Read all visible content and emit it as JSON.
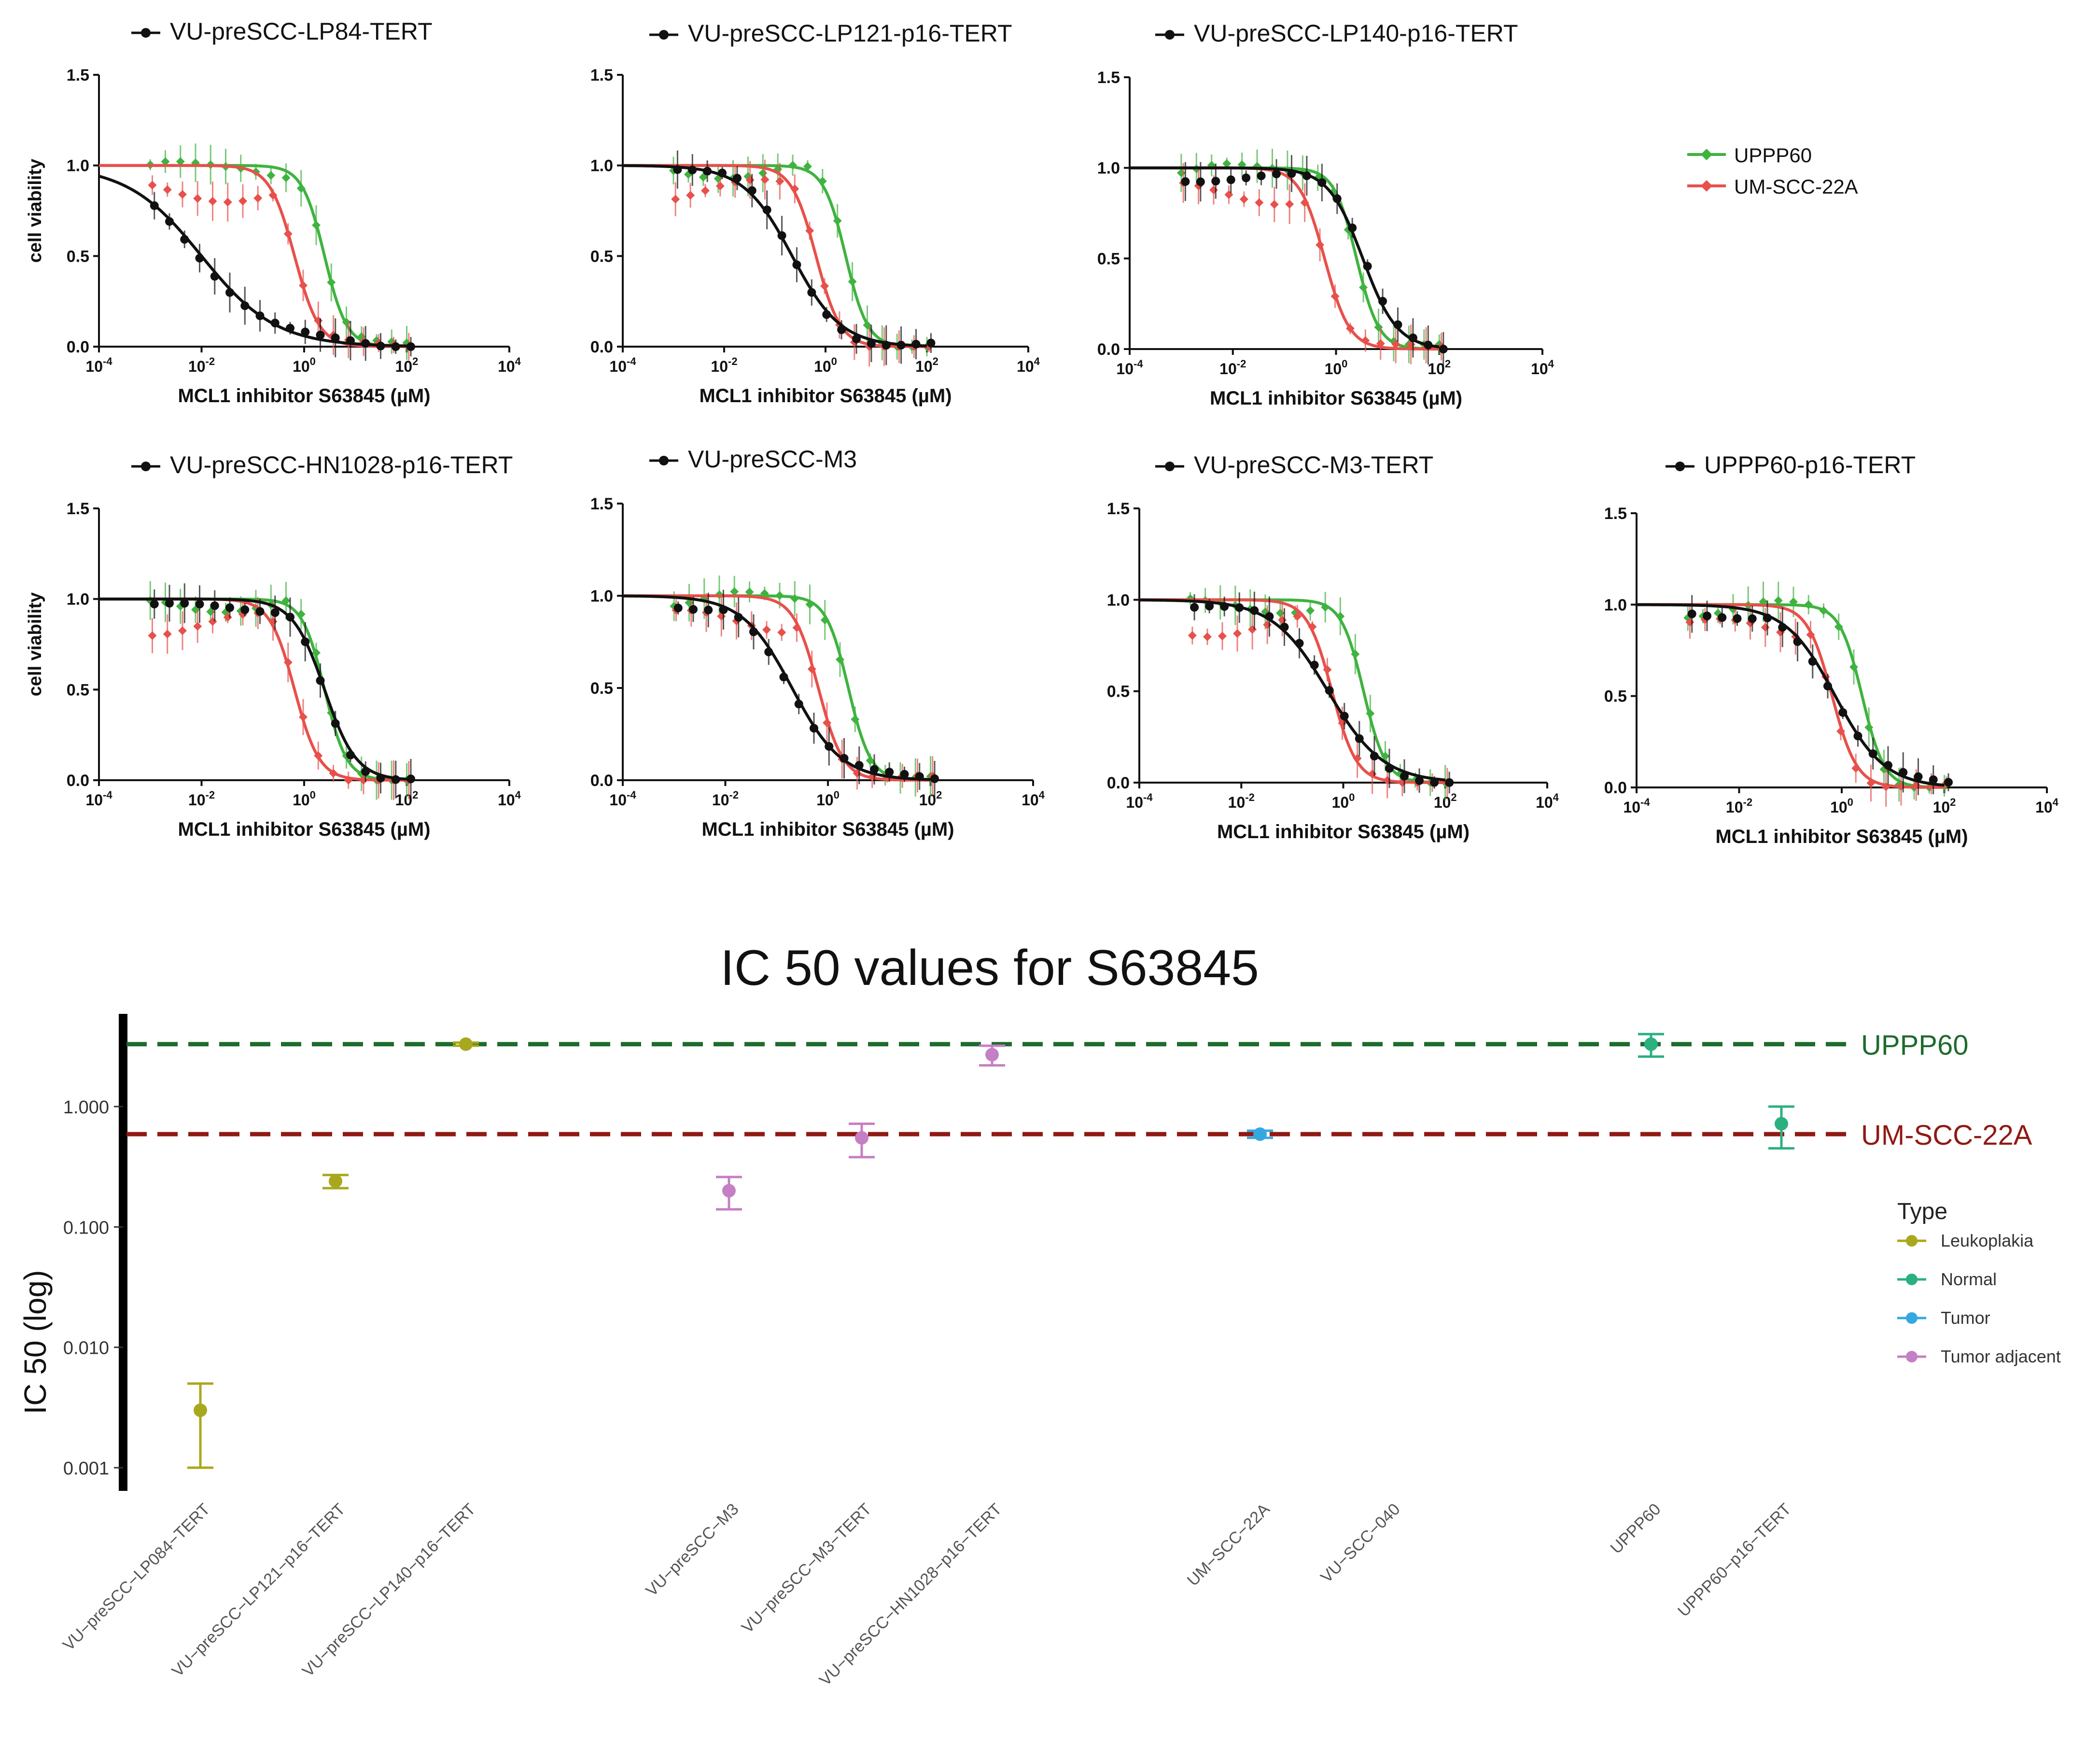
{
  "curve_legend": {
    "items": [
      {
        "label": "UPPP60",
        "color": "#3fb33f"
      },
      {
        "label": "UM-SCC-22A",
        "color": "#e8504b"
      }
    ]
  },
  "colors": {
    "black": "#111111",
    "green": "#3fb33f",
    "red": "#e8504b"
  },
  "panels": [
    {
      "title": "VU-preSCC-LP84-TERT",
      "ylabel": "cell viability",
      "xlabel": "MCL1 inhibitor S63845 (µM)",
      "ic50_black": 0.01,
      "hill_black": 0.6,
      "ic50_green": 2.5,
      "ic50_red": 0.65
    },
    {
      "title": "VU-preSCC-LP121-p16-TERT",
      "ylabel": "",
      "xlabel": "MCL1 inhibitor S63845 (µM)",
      "ic50_black": 0.22,
      "hill_black": 0.9,
      "ic50_green": 2.5,
      "ic50_red": 0.65
    },
    {
      "title": "VU-preSCC-LP140-p16-TERT",
      "ylabel": "",
      "xlabel": "MCL1 inhibitor S63845 (µM)",
      "ic50_black": 3.3,
      "hill_black": 1.3,
      "ic50_green": 2.5,
      "ic50_red": 0.6
    },
    {
      "title": "VU-preSCC-HN1028-p16-TERT",
      "ylabel": "cell viability",
      "xlabel": "MCL1 inhibitor S63845 (µM)",
      "ic50_black": 2.5,
      "hill_black": 1.4,
      "ic50_green": 2.5,
      "ic50_red": 0.65
    },
    {
      "title": "VU-preSCC-M3",
      "ylabel": "",
      "xlabel": "MCL1 inhibitor S63845 (µM)",
      "ic50_black": 0.2,
      "hill_black": 0.9,
      "ic50_green": 2.5,
      "ic50_red": 0.65
    },
    {
      "title": "VU-preSCC-M3-TERT",
      "ylabel": "",
      "xlabel": "MCL1 inhibitor S63845 (µM)",
      "ic50_black": 0.5,
      "hill_black": 0.8,
      "ic50_green": 2.5,
      "ic50_red": 0.6
    },
    {
      "title": "UPPP60-p16-TERT",
      "ylabel": "",
      "xlabel": "MCL1 inhibitor S63845 (µM)",
      "ic50_black": 0.75,
      "hill_black": 0.9,
      "ic50_green": 2.5,
      "ic50_red": 0.65
    }
  ],
  "panel_axes": {
    "ymin": 0.0,
    "ymax": 1.5,
    "yticks": [
      "0.0",
      "0.5",
      "1.0",
      "1.5"
    ],
    "xticks": [
      {
        "base": "10",
        "exp": "-4"
      },
      {
        "base": "10",
        "exp": "-2"
      },
      {
        "base": "10",
        "exp": "0"
      },
      {
        "base": "10",
        "exp": "2"
      },
      {
        "base": "10",
        "exp": "4"
      }
    ]
  },
  "chart_data": {
    "type": "scatter",
    "title": "IC 50 values for S63845",
    "ylabel": "IC 50 (log)",
    "yscale": "log",
    "ylim": [
      0.0008,
      5
    ],
    "yticks": [
      "0.001",
      "0.010",
      "0.100",
      "1.000"
    ],
    "categories": [
      "VU−preSCC−LP084−TERT",
      "VU−preSCC−LP121−p16−TERT",
      "VU−preSCC−LP140−p16−TERT",
      "VU−preSCC−M3",
      "VU−preSCC−M3−TERT",
      "VU−preSCC−HN1028−p16−TERT",
      "UM−SCC−22A",
      "VU−SCC−040",
      "UPPP60",
      "UPPP60−p16−TERT"
    ],
    "points": [
      {
        "category": "VU−preSCC−LP084−TERT",
        "type": "Leukoplakia",
        "value": 0.003,
        "low": 0.001,
        "high": 0.005
      },
      {
        "category": "VU−preSCC−LP121−p16−TERT",
        "type": "Leukoplakia",
        "value": 0.24,
        "low": 0.21,
        "high": 0.27
      },
      {
        "category": "VU−preSCC−LP140−p16−TERT",
        "type": "Leukoplakia",
        "value": 3.3,
        "low": 3.2,
        "high": 3.4
      },
      {
        "category": "VU−preSCC−M3",
        "type": "Tumor adjacent",
        "value": 0.2,
        "low": 0.14,
        "high": 0.26
      },
      {
        "category": "VU−preSCC−M3−TERT",
        "type": "Tumor adjacent",
        "value": 0.55,
        "low": 0.38,
        "high": 0.72
      },
      {
        "category": "VU−preSCC−HN1028−p16−TERT",
        "type": "Tumor adjacent",
        "value": 2.7,
        "low": 2.2,
        "high": 3.2
      },
      {
        "category": "UM−SCC−22A",
        "type": "Tumor",
        "value": 0.59,
        "low": 0.55,
        "high": 0.63
      },
      {
        "category": "UPPP60",
        "type": "Normal",
        "value": 3.3,
        "low": 2.6,
        "high": 4.0
      },
      {
        "category": "UPPP60−p16−TERT",
        "type": "Normal",
        "value": 0.72,
        "low": 0.45,
        "high": 1.0
      }
    ],
    "reference_lines": [
      {
        "label": "UPPP60",
        "value": 3.3,
        "color": "#1e6b2e"
      },
      {
        "label": "UM-SCC-22A",
        "value": 0.59,
        "color": "#8f1a14"
      }
    ],
    "legend": {
      "title": "Type",
      "position": "right",
      "items": [
        {
          "label": "Leukoplakia",
          "color": "#a8a81e"
        },
        {
          "label": "Normal",
          "color": "#2bb080"
        },
        {
          "label": "Tumor",
          "color": "#35a8e0"
        },
        {
          "label": "Tumor adjacent",
          "color": "#c57fc4"
        }
      ]
    }
  }
}
